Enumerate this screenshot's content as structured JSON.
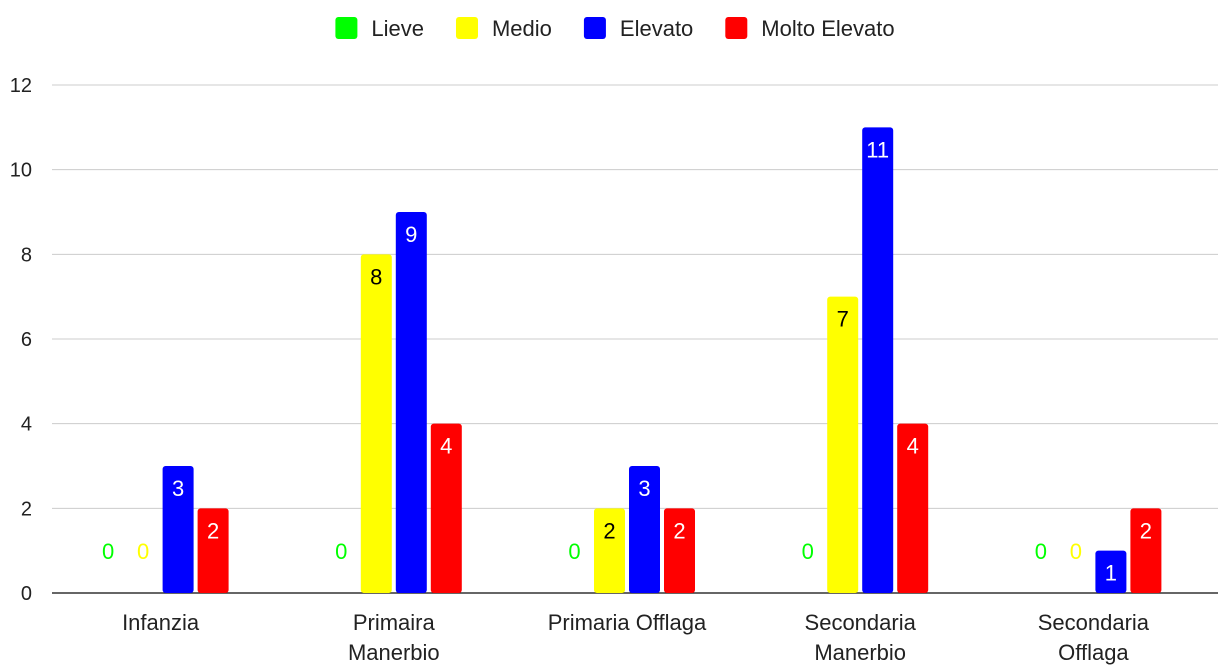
{
  "chart_data": {
    "type": "bar",
    "title": "",
    "xlabel": "",
    "ylabel": "",
    "ylim": [
      0,
      12
    ],
    "yticks": [
      "0",
      "2",
      "4",
      "6",
      "8",
      "10",
      "12"
    ],
    "grid": true,
    "legend_position": "top",
    "categories": [
      [
        "Infanzia"
      ],
      [
        "Primaira",
        "Manerbio"
      ],
      [
        "Primaria Offlaga"
      ],
      [
        "Secondaria",
        "Manerbio"
      ],
      [
        "Secondaria",
        "Offlaga"
      ]
    ],
    "series": [
      {
        "name": "Lieve",
        "color": "#00ff00",
        "label_color": "#00ff00",
        "values": [
          0,
          0,
          0,
          0,
          0
        ]
      },
      {
        "name": "Medio",
        "color": "#ffff00",
        "label_color": "#000000",
        "values": [
          0,
          8,
          2,
          7,
          0
        ]
      },
      {
        "name": "Elevato",
        "color": "#0000ff",
        "label_color": "#ffffff",
        "values": [
          3,
          9,
          3,
          11,
          1
        ]
      },
      {
        "name": "Molto Elevato",
        "color": "#ff0000",
        "label_color": "#ffffff",
        "values": [
          2,
          4,
          2,
          4,
          2
        ]
      }
    ],
    "zero_label_color_override": {
      "Medio": "#ffff00"
    }
  }
}
